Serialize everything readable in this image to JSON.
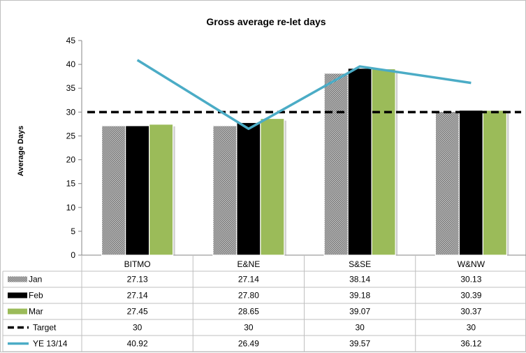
{
  "chart_data": {
    "type": "bar",
    "title": "Gross average re-let days",
    "ylabel": "Average Days",
    "xlabel": "",
    "ylim": [
      0,
      45
    ],
    "yticks": [
      0,
      5,
      10,
      15,
      20,
      25,
      30,
      35,
      40,
      45
    ],
    "grid": false,
    "legend": "data-table-left",
    "categories": [
      "BITMO",
      "E&NE",
      "S&SE",
      "W&NW"
    ],
    "series": [
      {
        "name": "Jan",
        "kind": "bar",
        "pattern": "checker",
        "color": "#9a9a9a",
        "values": [
          27.13,
          27.14,
          38.14,
          30.13
        ],
        "labels": [
          "27.13",
          "27.14",
          "38.14",
          "30.13"
        ]
      },
      {
        "name": "Feb",
        "kind": "bar",
        "color": "#000000",
        "values": [
          27.14,
          27.8,
          39.18,
          30.39
        ],
        "labels": [
          "27.14",
          "27.80",
          "39.18",
          "30.39"
        ]
      },
      {
        "name": "Mar",
        "kind": "bar",
        "color": "#9bbb59",
        "values": [
          27.45,
          28.65,
          39.07,
          30.37
        ],
        "labels": [
          "27.45",
          "28.65",
          "39.07",
          "30.37"
        ]
      },
      {
        "name": "Target",
        "kind": "dashed-line",
        "color": "#000000",
        "values": [
          30,
          30,
          30,
          30
        ],
        "labels": [
          "30",
          "30",
          "30",
          "30"
        ]
      },
      {
        "name": "YE  13/14",
        "kind": "line",
        "color": "#4bacc6",
        "values": [
          40.92,
          26.49,
          39.57,
          36.12
        ],
        "labels": [
          "40.92",
          "26.49",
          "39.57",
          "36.12"
        ]
      }
    ]
  }
}
